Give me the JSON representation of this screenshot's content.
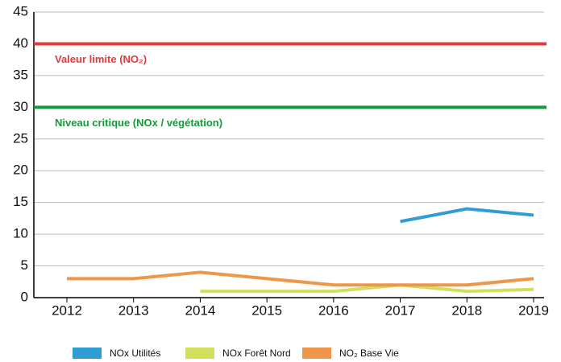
{
  "chart_data": {
    "type": "line",
    "categories": [
      "2012",
      "2013",
      "2014",
      "2015",
      "2016",
      "2017",
      "2018",
      "2019"
    ],
    "series": [
      {
        "name": "NOx Utilités",
        "color": "#2f9cd4",
        "values": [
          null,
          null,
          null,
          null,
          null,
          12,
          14,
          13
        ]
      },
      {
        "name": "NOx Forêt Nord",
        "color": "#d2df5c",
        "values": [
          null,
          null,
          1,
          1,
          1,
          2,
          1,
          1.3
        ]
      },
      {
        "name": "NO₂ Base Vie",
        "color": "#f0964a",
        "values": [
          3,
          3,
          4,
          3,
          2,
          2,
          2,
          3
        ]
      }
    ],
    "reference_lines": [
      {
        "value": 40,
        "label": "Valeur limite (NO₂)",
        "color": "#e23b3b"
      },
      {
        "value": 30,
        "label": "Niveau critique (NOx / végétation)",
        "color": "#159a3a"
      }
    ],
    "ylim": [
      0,
      45
    ],
    "yticks": [
      0,
      5,
      10,
      15,
      20,
      25,
      30,
      35,
      40,
      45
    ],
    "grid": true,
    "legend": "bottom"
  }
}
